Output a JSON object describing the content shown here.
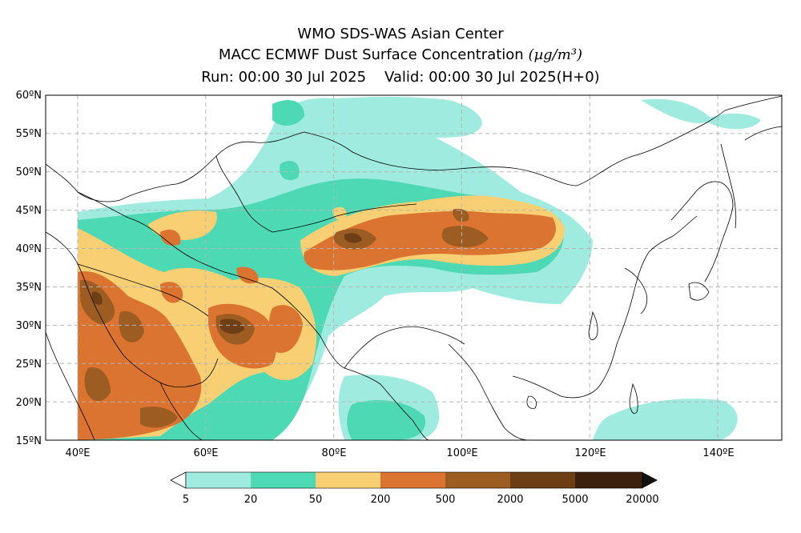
{
  "header": {
    "line1": "WMO SDS-WAS Asian Center",
    "line2_text": "MACC ECMWF Dust Surface Concentration ",
    "line2_unit": "(µg/m³)",
    "line3": "Run: 00:00 30 Jul 2025    Valid: 00:00 30 Jul 2025(H+0)"
  },
  "map": {
    "lon_range": [
      35,
      150
    ],
    "lat_range": [
      15,
      60
    ],
    "lat_ticks": [
      "15ºN",
      "20ºN",
      "25ºN",
      "30ºN",
      "35ºN",
      "40ºN",
      "45ºN",
      "50ºN",
      "55ºN",
      "60ºN"
    ],
    "lon_ticks": [
      "40ºE",
      "60ºE",
      "80ºE",
      "100ºE",
      "120ºE",
      "140ºE"
    ],
    "grid": "dashed"
  },
  "colorbar": {
    "labels": [
      "5",
      "20",
      "50",
      "200",
      "500",
      "2000",
      "5000",
      "20000"
    ],
    "colors": [
      "#a0ebe0",
      "#4cd9b4",
      "#f8cf72",
      "#db7430",
      "#9c5c22",
      "#6e3e14",
      "#3a200d"
    ],
    "extend": "both"
  },
  "dust_levels": {
    "level1": "#a0ebe0",
    "level2": "#4cd9b4",
    "level3": "#f8cf72",
    "level4": "#db7430",
    "level5": "#9c5c22",
    "level6": "#6e3e14"
  }
}
